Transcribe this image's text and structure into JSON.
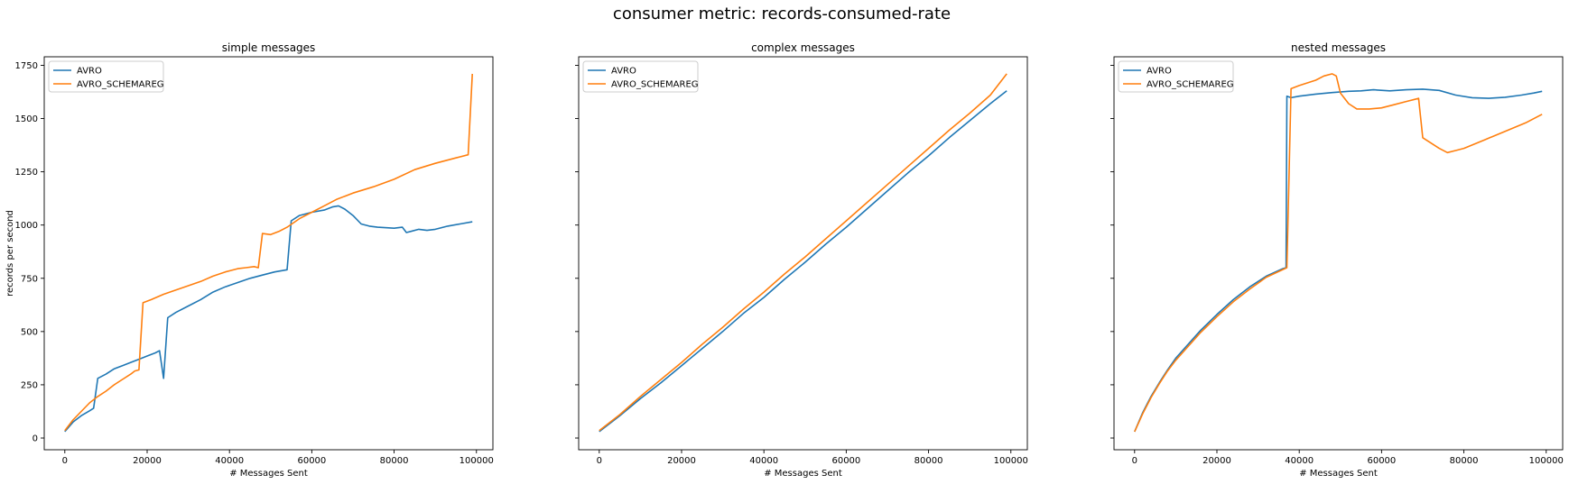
{
  "suptitle": "consumer metric: records-consumed-rate",
  "colors": {
    "AVRO": "#1f77b4",
    "AVRO_SCHEMAREG": "#ff7f0e"
  },
  "chart_data": [
    {
      "type": "line",
      "title": "simple messages",
      "xlabel": "# Messages Sent",
      "ylabel": "records per second",
      "xlim": [
        -5000,
        104000
      ],
      "ylim": [
        -55,
        1790
      ],
      "xticks": [
        0,
        20000,
        40000,
        60000,
        80000,
        100000
      ],
      "yticks": [
        0,
        250,
        500,
        750,
        1000,
        1250,
        1500,
        1750
      ],
      "show_yticklabels": true,
      "grid": false,
      "legend": "upper-left",
      "series": [
        {
          "name": "AVRO",
          "color": "#1f77b4",
          "x": [
            0,
            2000,
            4000,
            6000,
            7000,
            8000,
            10000,
            12000,
            14000,
            16000,
            18000,
            20000,
            22000,
            23000,
            24000,
            25000,
            27000,
            30000,
            33000,
            36000,
            39000,
            42000,
            45000,
            48000,
            51000,
            54000,
            55000,
            57000,
            60000,
            63000,
            65000,
            66500,
            68000,
            70000,
            72000,
            74000,
            76000,
            80000,
            82000,
            83000,
            84000,
            86000,
            88000,
            90000,
            93000,
            96000,
            99000
          ],
          "y": [
            30,
            75,
            105,
            128,
            140,
            280,
            300,
            325,
            340,
            355,
            370,
            385,
            400,
            410,
            280,
            565,
            590,
            620,
            650,
            685,
            710,
            730,
            750,
            765,
            780,
            790,
            1020,
            1045,
            1060,
            1070,
            1085,
            1090,
            1075,
            1045,
            1005,
            995,
            990,
            985,
            990,
            965,
            970,
            980,
            975,
            980,
            995,
            1005,
            1015
          ]
        },
        {
          "name": "AVRO_SCHEMAREG",
          "color": "#ff7f0e",
          "x": [
            0,
            2000,
            4000,
            6000,
            8000,
            10000,
            12000,
            14000,
            16000,
            17000,
            18000,
            19000,
            21000,
            24000,
            27000,
            30000,
            33000,
            36000,
            39000,
            42000,
            44000,
            46000,
            47000,
            48000,
            50000,
            52000,
            54000,
            57000,
            60000,
            63000,
            66000,
            70000,
            75000,
            80000,
            85000,
            90000,
            95000,
            98000,
            99000
          ],
          "y": [
            35,
            85,
            125,
            165,
            195,
            220,
            250,
            275,
            300,
            315,
            320,
            635,
            650,
            675,
            695,
            715,
            735,
            760,
            780,
            795,
            800,
            805,
            800,
            960,
            955,
            970,
            990,
            1030,
            1060,
            1090,
            1120,
            1150,
            1180,
            1215,
            1260,
            1290,
            1315,
            1330,
            1710
          ]
        }
      ]
    },
    {
      "type": "line",
      "title": "complex messages",
      "xlabel": "# Messages Sent",
      "ylabel": "",
      "xlim": [
        -5000,
        104000
      ],
      "ylim": [
        -55,
        1790
      ],
      "xticks": [
        0,
        20000,
        40000,
        60000,
        80000,
        100000
      ],
      "yticks": [
        0,
        250,
        500,
        750,
        1000,
        1250,
        1500,
        1750
      ],
      "show_yticklabels": false,
      "grid": false,
      "legend": "upper-left",
      "series": [
        {
          "name": "AVRO",
          "color": "#1f77b4",
          "x": [
            0,
            5000,
            10000,
            15000,
            20000,
            25000,
            30000,
            35000,
            40000,
            45000,
            50000,
            55000,
            60000,
            65000,
            70000,
            75000,
            80000,
            85000,
            90000,
            95000,
            99000
          ],
          "y": [
            30,
            105,
            185,
            260,
            340,
            420,
            500,
            585,
            660,
            745,
            825,
            910,
            990,
            1075,
            1160,
            1245,
            1325,
            1410,
            1490,
            1570,
            1630
          ]
        },
        {
          "name": "AVRO_SCHEMAREG",
          "color": "#ff7f0e",
          "x": [
            0,
            5000,
            10000,
            15000,
            20000,
            25000,
            30000,
            35000,
            40000,
            45000,
            50000,
            55000,
            60000,
            65000,
            70000,
            75000,
            80000,
            85000,
            90000,
            95000,
            99000
          ],
          "y": [
            35,
            110,
            195,
            275,
            355,
            440,
            520,
            605,
            685,
            770,
            850,
            935,
            1020,
            1105,
            1190,
            1275,
            1360,
            1445,
            1525,
            1610,
            1710
          ]
        }
      ]
    },
    {
      "type": "line",
      "title": "nested messages",
      "xlabel": "# Messages Sent",
      "ylabel": "",
      "xlim": [
        -5000,
        104000
      ],
      "ylim": [
        -55,
        1790
      ],
      "xticks": [
        0,
        20000,
        40000,
        60000,
        80000,
        100000
      ],
      "yticks": [
        0,
        250,
        500,
        750,
        1000,
        1250,
        1500,
        1750
      ],
      "show_yticklabels": false,
      "grid": false,
      "legend": "upper-left",
      "series": [
        {
          "name": "AVRO",
          "color": "#1f77b4",
          "x": [
            0,
            2000,
            4000,
            6000,
            8000,
            10000,
            13000,
            16000,
            20000,
            24000,
            28000,
            32000,
            36000,
            36800,
            37000,
            38000,
            40000,
            44000,
            48000,
            52000,
            55000,
            58000,
            62000,
            66000,
            70000,
            74000,
            78000,
            82000,
            86000,
            90000,
            94000,
            97000,
            99000
          ],
          "y": [
            30,
            120,
            195,
            260,
            320,
            375,
            440,
            505,
            580,
            650,
            710,
            760,
            795,
            800,
            1605,
            1598,
            1605,
            1615,
            1622,
            1628,
            1630,
            1635,
            1630,
            1635,
            1638,
            1632,
            1610,
            1598,
            1595,
            1600,
            1610,
            1620,
            1628
          ]
        },
        {
          "name": "AVRO_SCHEMAREG",
          "color": "#ff7f0e",
          "x": [
            0,
            2000,
            4000,
            6000,
            8000,
            10000,
            13000,
            16000,
            20000,
            24000,
            28000,
            32000,
            37000,
            38000,
            40000,
            44000,
            46000,
            48000,
            49000,
            50000,
            52000,
            54000,
            57000,
            60000,
            63000,
            66000,
            68000,
            69000,
            70000,
            72000,
            74000,
            76000,
            78000,
            80000,
            85000,
            90000,
            95000,
            99000
          ],
          "y": [
            30,
            115,
            190,
            255,
            315,
            365,
            430,
            495,
            570,
            640,
            700,
            755,
            800,
            1640,
            1655,
            1680,
            1700,
            1710,
            1700,
            1620,
            1570,
            1545,
            1545,
            1550,
            1565,
            1580,
            1590,
            1595,
            1410,
            1385,
            1360,
            1340,
            1350,
            1360,
            1400,
            1440,
            1480,
            1520
          ]
        }
      ]
    }
  ]
}
